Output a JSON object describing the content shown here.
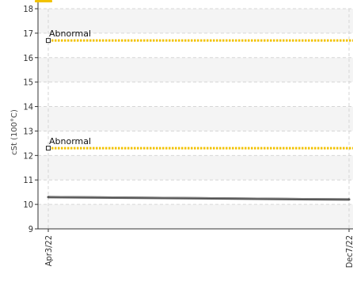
{
  "chart_data": {
    "type": "line",
    "title": "",
    "xlabel": "",
    "ylabel": "cSt (100°C)",
    "ylim": [
      9,
      18
    ],
    "yticks": [
      9,
      10,
      11,
      12,
      13,
      14,
      15,
      16,
      17,
      18
    ],
    "x_ticks": [
      "Apr3/22",
      "Dec7/22"
    ],
    "grid": true,
    "colors": {
      "threshold": "#f2c200",
      "series": "#555555",
      "band_shade": "#f4f4f4",
      "grid": "#d6d6d6",
      "axis": "#333333",
      "top_marker": "#f2c200"
    },
    "thresholds": [
      {
        "label": "Abnormal",
        "value": 16.7
      },
      {
        "label": "Abnormal",
        "value": 12.3
      }
    ],
    "series": [
      {
        "x": [
          "Apr3/22",
          "Dec7/22"
        ],
        "values": [
          10.3,
          10.2
        ]
      }
    ]
  }
}
